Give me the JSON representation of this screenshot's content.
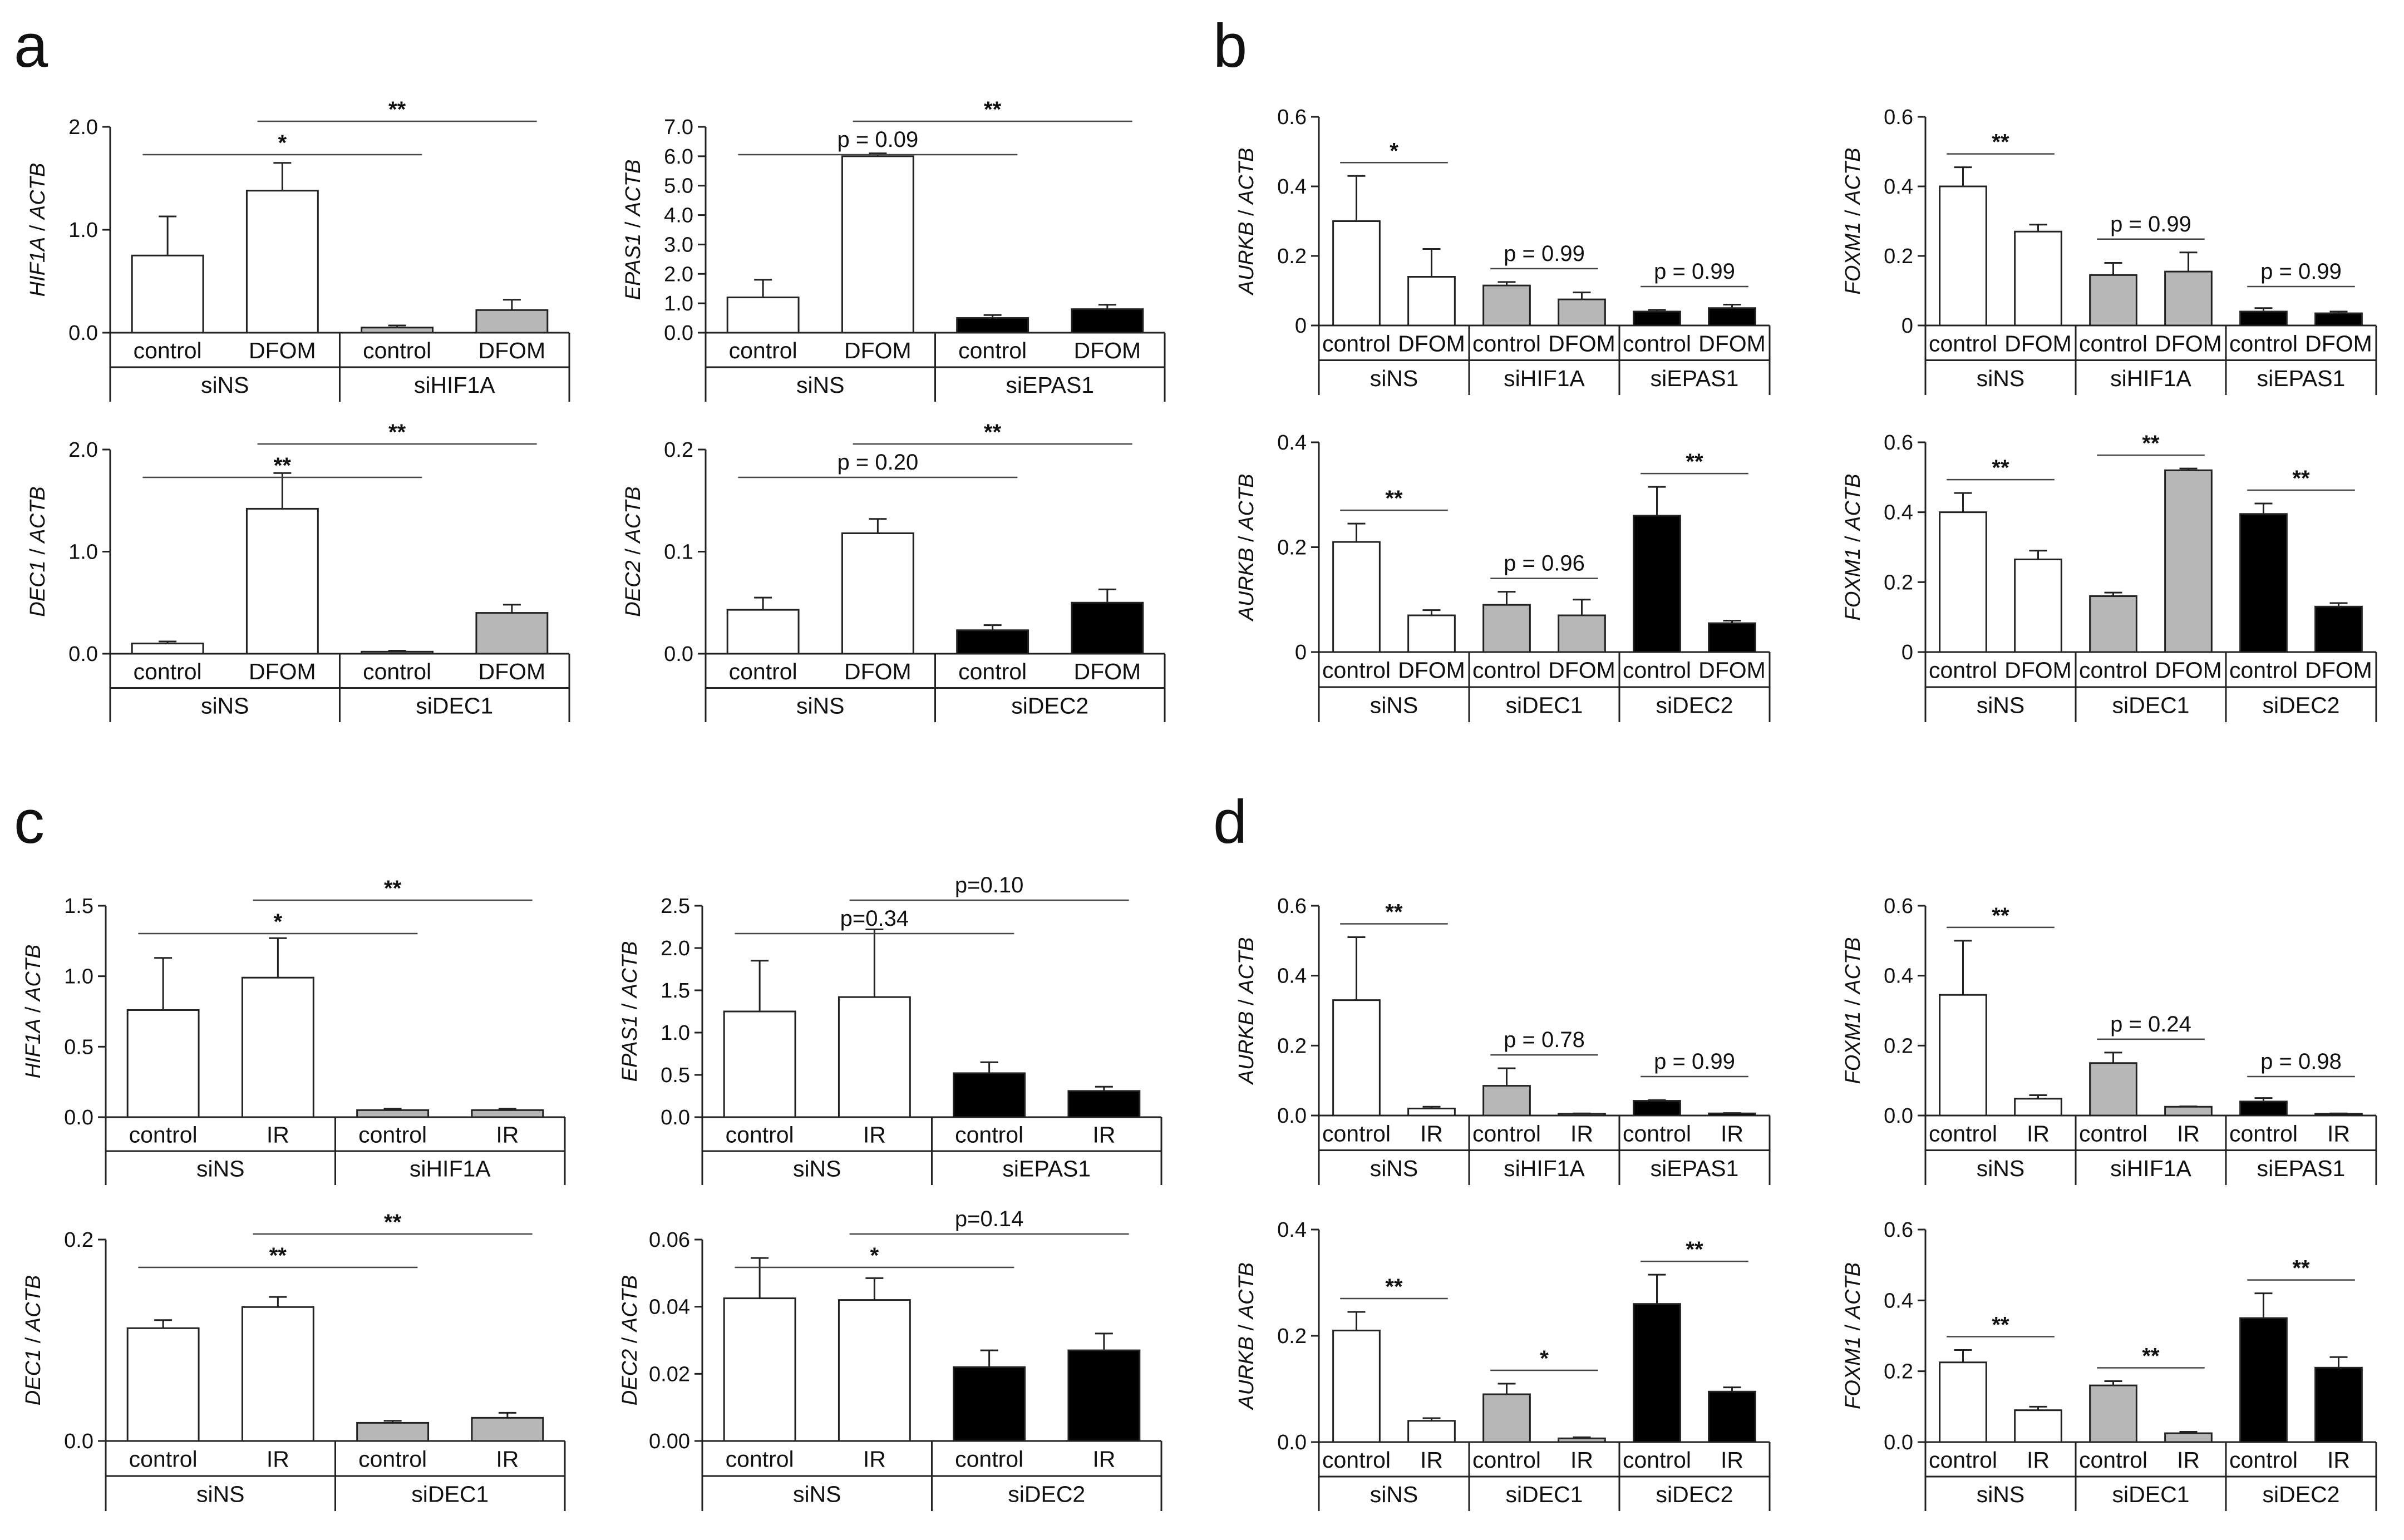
{
  "panel_letters": [
    "a",
    "b",
    "c",
    "d"
  ],
  "colors": {
    "white": "#ffffff",
    "grey": "#b7b7b7",
    "black": "#000000",
    "axis": "#222222",
    "line": "#444444"
  },
  "chart_data": [
    {
      "type": "bar",
      "panel": "a",
      "ylabel_gene": "HIF1A",
      "ylabel_ref": "ACTB",
      "ylim": [
        0,
        2.0
      ],
      "yticks": [
        "0.0",
        "1.0",
        "2.0"
      ],
      "categories": [
        "control",
        "DFOM",
        "control",
        "DFOM"
      ],
      "groups": [
        "siNS",
        "siHIF1A"
      ],
      "values": [
        0.75,
        1.38,
        0.05,
        0.22
      ],
      "errors": [
        0.38,
        0.27,
        0.02,
        0.1
      ],
      "fills": [
        "white",
        "white",
        "grey",
        "grey"
      ],
      "annotations": [
        {
          "text": "*",
          "from": 0,
          "to": 2
        },
        {
          "text": "**",
          "from": 1,
          "to": 3
        }
      ]
    },
    {
      "type": "bar",
      "panel": "a",
      "ylabel_gene": "EPAS1",
      "ylabel_ref": "ACTB",
      "ylim": [
        0,
        7.0
      ],
      "yticks": [
        "0.0",
        "1.0",
        "2.0",
        "3.0",
        "4.0",
        "5.0",
        "6.0",
        "7.0"
      ],
      "categories": [
        "control",
        "DFOM",
        "control",
        "DFOM"
      ],
      "groups": [
        "siNS",
        "siEPAS1"
      ],
      "values": [
        1.2,
        6.0,
        0.5,
        0.8
      ],
      "errors": [
        0.6,
        0.1,
        0.1,
        0.15
      ],
      "fills": [
        "white",
        "white",
        "black",
        "black"
      ],
      "annotations": [
        {
          "text": "p = 0.09",
          "from": 0,
          "to": 2
        },
        {
          "text": "**",
          "from": 1,
          "to": 3
        }
      ]
    },
    {
      "type": "bar",
      "panel": "a",
      "ylabel_gene": "DEC1",
      "ylabel_ref": "ACTB",
      "ylim": [
        0,
        2.0
      ],
      "yticks": [
        "0.0",
        "1.0",
        "2.0"
      ],
      "categories": [
        "control",
        "DFOM",
        "control",
        "DFOM"
      ],
      "groups": [
        "siNS",
        "siDEC1"
      ],
      "values": [
        0.1,
        1.42,
        0.02,
        0.4
      ],
      "errors": [
        0.02,
        0.35,
        0.01,
        0.08
      ],
      "fills": [
        "white",
        "white",
        "grey",
        "grey"
      ],
      "annotations": [
        {
          "text": "**",
          "from": 0,
          "to": 2
        },
        {
          "text": "**",
          "from": 1,
          "to": 3
        }
      ]
    },
    {
      "type": "bar",
      "panel": "a",
      "ylabel_gene": "DEC2",
      "ylabel_ref": "ACTB",
      "ylim": [
        0,
        0.2
      ],
      "yticks": [
        "0.0",
        "0.1",
        "0.2"
      ],
      "categories": [
        "control",
        "DFOM",
        "control",
        "DFOM"
      ],
      "groups": [
        "siNS",
        "siDEC2"
      ],
      "values": [
        0.043,
        0.118,
        0.023,
        0.05
      ],
      "errors": [
        0.012,
        0.014,
        0.005,
        0.013
      ],
      "fills": [
        "white",
        "white",
        "black",
        "black"
      ],
      "annotations": [
        {
          "text": "p = 0.20",
          "from": 0,
          "to": 2
        },
        {
          "text": "**",
          "from": 1,
          "to": 3
        }
      ]
    },
    {
      "type": "bar",
      "panel": "b",
      "ylabel_gene": "AURKB",
      "ylabel_ref": "ACTB",
      "ylim": [
        0,
        0.6
      ],
      "yticks": [
        "0",
        "0.2",
        "0.4",
        "0.6"
      ],
      "categories": [
        "control",
        "DFOM",
        "control",
        "DFOM",
        "control",
        "DFOM"
      ],
      "groups": [
        "siNS",
        "siHIF1A",
        "siEPAS1"
      ],
      "values": [
        0.3,
        0.14,
        0.115,
        0.075,
        0.04,
        0.05
      ],
      "errors": [
        0.13,
        0.08,
        0.01,
        0.02,
        0.005,
        0.01
      ],
      "fills": [
        "white",
        "white",
        "grey",
        "grey",
        "black",
        "black"
      ],
      "annotations": [
        {
          "text": "*",
          "from": 0,
          "to": 1
        },
        {
          "text": "p = 0.99",
          "from": 2,
          "to": 3
        },
        {
          "text": "p = 0.99",
          "from": 4,
          "to": 5
        }
      ]
    },
    {
      "type": "bar",
      "panel": "b",
      "ylabel_gene": "FOXM1",
      "ylabel_ref": "ACTB",
      "ylim": [
        0,
        0.6
      ],
      "yticks": [
        "0",
        "0.2",
        "0.4",
        "0.6"
      ],
      "categories": [
        "control",
        "DFOM",
        "control",
        "DFOM",
        "control",
        "DFOM"
      ],
      "groups": [
        "siNS",
        "siHIF1A",
        "siEPAS1"
      ],
      "values": [
        0.4,
        0.27,
        0.145,
        0.155,
        0.04,
        0.035
      ],
      "errors": [
        0.055,
        0.02,
        0.035,
        0.055,
        0.01,
        0.005
      ],
      "fills": [
        "white",
        "white",
        "grey",
        "grey",
        "black",
        "black"
      ],
      "annotations": [
        {
          "text": "**",
          "from": 0,
          "to": 1
        },
        {
          "text": "p = 0.99",
          "from": 2,
          "to": 3
        },
        {
          "text": "p = 0.99",
          "from": 4,
          "to": 5
        }
      ]
    },
    {
      "type": "bar",
      "panel": "b",
      "ylabel_gene": "AURKB",
      "ylabel_ref": "ACTB",
      "ylim": [
        0,
        0.4
      ],
      "yticks": [
        "0",
        "0.2",
        "0.4"
      ],
      "categories": [
        "control",
        "DFOM",
        "control",
        "DFOM",
        "control",
        "DFOM"
      ],
      "groups": [
        "siNS",
        "siDEC1",
        "siDEC2"
      ],
      "values": [
        0.21,
        0.07,
        0.09,
        0.07,
        0.26,
        0.055
      ],
      "errors": [
        0.035,
        0.01,
        0.025,
        0.03,
        0.055,
        0.005
      ],
      "fills": [
        "white",
        "white",
        "grey",
        "grey",
        "black",
        "black"
      ],
      "annotations": [
        {
          "text": "**",
          "from": 0,
          "to": 1
        },
        {
          "text": "p = 0.96",
          "from": 2,
          "to": 3
        },
        {
          "text": "**",
          "from": 4,
          "to": 5
        }
      ]
    },
    {
      "type": "bar",
      "panel": "b",
      "ylabel_gene": "FOXM1",
      "ylabel_ref": "ACTB",
      "ylim": [
        0,
        0.6
      ],
      "yticks": [
        "0",
        "0.2",
        "0.4",
        "0.6"
      ],
      "categories": [
        "control",
        "DFOM",
        "control",
        "DFOM",
        "control",
        "DFOM"
      ],
      "groups": [
        "siNS",
        "siDEC1",
        "siDEC2"
      ],
      "values": [
        0.4,
        0.265,
        0.16,
        0.52,
        0.395,
        0.13
      ],
      "errors": [
        0.055,
        0.025,
        0.01,
        0.005,
        0.03,
        0.01
      ],
      "fills": [
        "white",
        "white",
        "grey",
        "grey",
        "black",
        "black"
      ],
      "annotations": [
        {
          "text": "**",
          "from": 0,
          "to": 1
        },
        {
          "text": "**",
          "from": 2,
          "to": 3
        },
        {
          "text": "**",
          "from": 4,
          "to": 5
        }
      ]
    },
    {
      "type": "bar",
      "panel": "c",
      "ylabel_gene": "HIF1A",
      "ylabel_ref": "ACTB",
      "ylim": [
        0,
        1.5
      ],
      "yticks": [
        "0.0",
        "0.5",
        "1.0",
        "1.5"
      ],
      "categories": [
        "control",
        "IR",
        "control",
        "IR"
      ],
      "groups": [
        "siNS",
        "siHIF1A"
      ],
      "values": [
        0.76,
        0.99,
        0.05,
        0.05
      ],
      "errors": [
        0.37,
        0.28,
        0.01,
        0.01
      ],
      "fills": [
        "white",
        "white",
        "grey",
        "grey"
      ],
      "annotations": [
        {
          "text": "*",
          "from": 0,
          "to": 2
        },
        {
          "text": "**",
          "from": 1,
          "to": 3
        }
      ]
    },
    {
      "type": "bar",
      "panel": "c",
      "ylabel_gene": "EPAS1",
      "ylabel_ref": "ACTB",
      "ylim": [
        0,
        2.5
      ],
      "yticks": [
        "0.0",
        "0.5",
        "1.0",
        "1.5",
        "2.0",
        "2.5"
      ],
      "categories": [
        "control",
        "IR",
        "control",
        "IR"
      ],
      "groups": [
        "siNS",
        "siEPAS1"
      ],
      "values": [
        1.25,
        1.42,
        0.52,
        0.31
      ],
      "errors": [
        0.6,
        0.8,
        0.13,
        0.05
      ],
      "fills": [
        "white",
        "white",
        "black",
        "black"
      ],
      "annotations": [
        {
          "text": "p=0.34",
          "from": 0,
          "to": 2
        },
        {
          "text": "p=0.10",
          "from": 1,
          "to": 3
        }
      ]
    },
    {
      "type": "bar",
      "panel": "c",
      "ylabel_gene": "DEC1",
      "ylabel_ref": "ACTB",
      "ylim": [
        0,
        0.2
      ],
      "yticks": [
        "0.0",
        "0.2"
      ],
      "categories": [
        "control",
        "IR",
        "control",
        "IR"
      ],
      "groups": [
        "siNS",
        "siDEC1"
      ],
      "values": [
        0.112,
        0.133,
        0.018,
        0.023
      ],
      "errors": [
        0.008,
        0.01,
        0.002,
        0.005
      ],
      "fills": [
        "white",
        "white",
        "grey",
        "grey"
      ],
      "annotations": [
        {
          "text": "**",
          "from": 0,
          "to": 2
        },
        {
          "text": "**",
          "from": 1,
          "to": 3
        }
      ]
    },
    {
      "type": "bar",
      "panel": "c",
      "ylabel_gene": "DEC2",
      "ylabel_ref": "ACTB",
      "ylim": [
        0,
        0.06
      ],
      "yticks": [
        "0.00",
        "0.02",
        "0.04",
        "0.06"
      ],
      "categories": [
        "control",
        "IR",
        "control",
        "IR"
      ],
      "groups": [
        "siNS",
        "siDEC2"
      ],
      "values": [
        0.0425,
        0.042,
        0.022,
        0.027
      ],
      "errors": [
        0.012,
        0.0065,
        0.005,
        0.005
      ],
      "fills": [
        "white",
        "white",
        "black",
        "black"
      ],
      "annotations": [
        {
          "text": "*",
          "from": 0,
          "to": 2
        },
        {
          "text": "p=0.14",
          "from": 1,
          "to": 3
        }
      ]
    },
    {
      "type": "bar",
      "panel": "d",
      "ylabel_gene": "AURKB",
      "ylabel_ref": "ACTB",
      "ylim": [
        0,
        0.6
      ],
      "yticks": [
        "0.0",
        "0.2",
        "0.4",
        "0.6"
      ],
      "categories": [
        "control",
        "IR",
        "control",
        "IR",
        "control",
        "IR"
      ],
      "groups": [
        "siNS",
        "siHIF1A",
        "siEPAS1"
      ],
      "values": [
        0.33,
        0.02,
        0.085,
        0.005,
        0.042,
        0.006
      ],
      "errors": [
        0.18,
        0.005,
        0.05,
        0.001,
        0.002,
        0.001
      ],
      "fills": [
        "white",
        "white",
        "grey",
        "grey",
        "black",
        "black"
      ],
      "annotations": [
        {
          "text": "**",
          "from": 0,
          "to": 1
        },
        {
          "text": "p = 0.78",
          "from": 2,
          "to": 3
        },
        {
          "text": "p = 0.99",
          "from": 4,
          "to": 5
        }
      ]
    },
    {
      "type": "bar",
      "panel": "d",
      "ylabel_gene": "FOXM1",
      "ylabel_ref": "ACTB",
      "ylim": [
        0,
        0.6
      ],
      "yticks": [
        "0.0",
        "0.2",
        "0.4",
        "0.6"
      ],
      "categories": [
        "control",
        "IR",
        "control",
        "IR",
        "control",
        "IR"
      ],
      "groups": [
        "siNS",
        "siHIF1A",
        "siEPAS1"
      ],
      "values": [
        0.345,
        0.048,
        0.15,
        0.025,
        0.04,
        0.005
      ],
      "errors": [
        0.155,
        0.01,
        0.03,
        0.001,
        0.01,
        0.001
      ],
      "fills": [
        "white",
        "white",
        "grey",
        "grey",
        "black",
        "black"
      ],
      "annotations": [
        {
          "text": "**",
          "from": 0,
          "to": 1
        },
        {
          "text": "p = 0.24",
          "from": 2,
          "to": 3
        },
        {
          "text": "p = 0.98",
          "from": 4,
          "to": 5
        }
      ]
    },
    {
      "type": "bar",
      "panel": "d",
      "ylabel_gene": "AURKB",
      "ylabel_ref": "ACTB",
      "ylim": [
        0,
        0.4
      ],
      "yticks": [
        "0.0",
        "0.2",
        "0.4"
      ],
      "categories": [
        "control",
        "IR",
        "control",
        "IR",
        "control",
        "IR"
      ],
      "groups": [
        "siNS",
        "siDEC1",
        "siDEC2"
      ],
      "values": [
        0.21,
        0.04,
        0.09,
        0.007,
        0.26,
        0.095
      ],
      "errors": [
        0.035,
        0.005,
        0.02,
        0.002,
        0.055,
        0.008
      ],
      "fills": [
        "white",
        "white",
        "grey",
        "grey",
        "black",
        "black"
      ],
      "annotations": [
        {
          "text": "**",
          "from": 0,
          "to": 1
        },
        {
          "text": "*",
          "from": 2,
          "to": 3
        },
        {
          "text": "**",
          "from": 4,
          "to": 5
        }
      ]
    },
    {
      "type": "bar",
      "panel": "d",
      "ylabel_gene": "FOXM1",
      "ylabel_ref": "ACTB",
      "ylim": [
        0,
        0.6
      ],
      "yticks": [
        "0.0",
        "0.2",
        "0.4",
        "0.6"
      ],
      "categories": [
        "control",
        "IR",
        "control",
        "IR",
        "control",
        "IR"
      ],
      "groups": [
        "siNS",
        "siDEC1",
        "siDEC2"
      ],
      "values": [
        0.225,
        0.09,
        0.16,
        0.025,
        0.35,
        0.21
      ],
      "errors": [
        0.035,
        0.01,
        0.012,
        0.004,
        0.07,
        0.03
      ],
      "fills": [
        "white",
        "white",
        "grey",
        "grey",
        "black",
        "black"
      ],
      "annotations": [
        {
          "text": "**",
          "from": 0,
          "to": 1
        },
        {
          "text": "**",
          "from": 2,
          "to": 3
        },
        {
          "text": "**",
          "from": 4,
          "to": 5
        }
      ]
    }
  ]
}
